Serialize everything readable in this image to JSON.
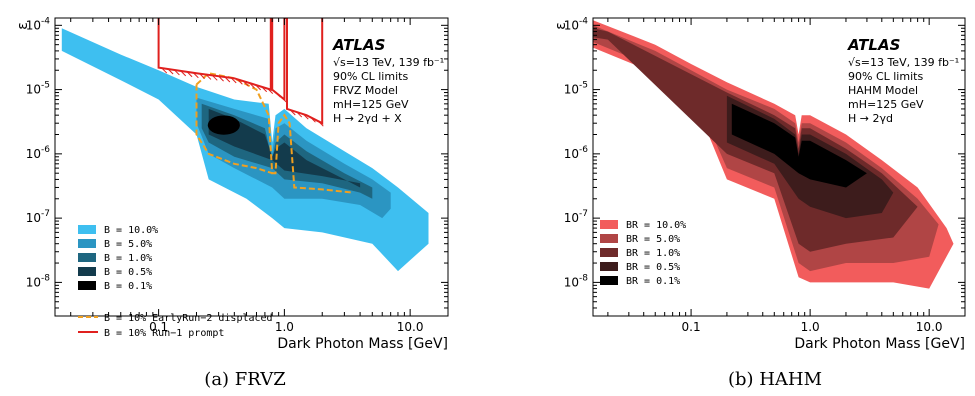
{
  "chart_data": [
    {
      "type": "area",
      "panel": "a",
      "caption": "(a) FRVZ",
      "xlabel": "Dark Photon Mass [GeV]",
      "ylabel": "ε",
      "xscale": "log",
      "yscale": "log",
      "xlim": [
        0.015,
        20
      ],
      "ylim": [
        3e-09,
        0.00013
      ],
      "xticks": [
        {
          "v": 0.1,
          "label": "0.1"
        },
        {
          "v": 1,
          "label": "1.0"
        },
        {
          "v": 10,
          "label": "10.0"
        }
      ],
      "yticks": [
        {
          "v": 0.0001,
          "exp": "-4"
        },
        {
          "v": 1e-05,
          "exp": "-5"
        },
        {
          "v": 1e-06,
          "exp": "-6"
        },
        {
          "v": 1e-07,
          "exp": "-7"
        },
        {
          "v": 1e-08,
          "exp": "-8"
        }
      ],
      "annotation": {
        "experiment": "ATLAS",
        "lines": [
          "√s=13 TeV, 139 fb⁻¹",
          "90% CL limits",
          "FRVZ Model",
          "mH=125 GeV",
          "H → 2γd + X"
        ]
      },
      "legend_position": "bottom-left",
      "series": [
        {
          "name": "B =  10.0%",
          "color": "#3ebff0",
          "kind": "band",
          "upper": [
            [
              0.017,
              9e-05
            ],
            [
              0.05,
              3.5e-05
            ],
            [
              0.1,
              2e-05
            ],
            [
              0.2,
              1.1e-05
            ],
            [
              0.4,
              7e-06
            ],
            [
              0.75,
              6e-06
            ],
            [
              0.8,
              1.5e-06
            ],
            [
              0.85,
              4e-06
            ],
            [
              1.0,
              5e-06
            ],
            [
              1.5,
              2.5e-06
            ],
            [
              3,
              1.1e-06
            ],
            [
              5,
              6e-07
            ],
            [
              8,
              3e-07
            ],
            [
              14,
              1.2e-07
            ]
          ],
          "lower": [
            [
              0.017,
              4e-05
            ],
            [
              0.05,
              1.4e-05
            ],
            [
              0.1,
              7e-06
            ],
            [
              0.2,
              2e-06
            ],
            [
              0.25,
              4e-07
            ],
            [
              0.5,
              2e-07
            ],
            [
              0.8,
              1e-07
            ],
            [
              1,
              7e-08
            ],
            [
              2,
              6e-08
            ],
            [
              5,
              4e-08
            ],
            [
              8,
              1.5e-08
            ],
            [
              14,
              4e-08
            ]
          ]
        },
        {
          "name": "B =   5.0%",
          "color": "#2b95c2",
          "kind": "band",
          "upper": [
            [
              0.2,
              7.5e-06
            ],
            [
              0.4,
              5e-06
            ],
            [
              0.75,
              3.5e-06
            ],
            [
              0.8,
              1e-06
            ],
            [
              0.85,
              2.5e-06
            ],
            [
              1.0,
              3e-06
            ],
            [
              1.5,
              1.6e-06
            ],
            [
              3,
              7e-07
            ],
            [
              5,
              4e-07
            ],
            [
              7,
              2.5e-07
            ]
          ],
          "lower": [
            [
              0.2,
              3e-06
            ],
            [
              0.25,
              1e-06
            ],
            [
              0.4,
              6e-07
            ],
            [
              0.8,
              3e-07
            ],
            [
              1,
              2e-07
            ],
            [
              2,
              2e-07
            ],
            [
              4,
              1.6e-07
            ],
            [
              6,
              1e-07
            ],
            [
              7,
              1.4e-07
            ]
          ]
        },
        {
          "name": "B =   1.0%",
          "color": "#1e6680",
          "kind": "band",
          "upper": [
            [
              0.22,
              6e-06
            ],
            [
              0.4,
              4e-06
            ],
            [
              0.7,
              2.5e-06
            ],
            [
              0.8,
              8e-07
            ],
            [
              0.85,
              1.5e-06
            ],
            [
              1.0,
              2e-06
            ],
            [
              1.5,
              1.1e-06
            ],
            [
              3,
              5e-07
            ],
            [
              5,
              3e-07
            ]
          ],
          "lower": [
            [
              0.22,
              2.5e-06
            ],
            [
              0.25,
              1.5e-06
            ],
            [
              0.4,
              9e-07
            ],
            [
              0.8,
              6e-07
            ],
            [
              1,
              4e-07
            ],
            [
              2,
              3.5e-07
            ],
            [
              4,
              2.5e-07
            ],
            [
              5,
              2e-07
            ]
          ]
        },
        {
          "name": "B =   0.5%",
          "color": "#133b4c",
          "kind": "band",
          "upper": [
            [
              0.25,
              5e-06
            ],
            [
              0.4,
              3.5e-06
            ],
            [
              0.7,
              2e-06
            ],
            [
              0.8,
              9e-07
            ],
            [
              0.85,
              1.2e-06
            ],
            [
              1.0,
              1.5e-06
            ],
            [
              1.5,
              8e-07
            ],
            [
              3,
              4e-07
            ],
            [
              4,
              3e-07
            ]
          ],
          "lower": [
            [
              0.25,
              2e-06
            ],
            [
              0.4,
              1.3e-06
            ],
            [
              0.8,
              8e-07
            ],
            [
              1,
              5.5e-07
            ],
            [
              2,
              4.5e-07
            ],
            [
              4,
              3.5e-07
            ]
          ]
        },
        {
          "name": "B =   0.1%",
          "color": "#000000",
          "kind": "ellipse",
          "center": [
            0.33,
            2.8e-06
          ],
          "x_range": [
            0.25,
            0.45
          ],
          "y_range": [
            2e-06,
            4e-06
          ]
        },
        {
          "name": "B = 10% EarlyRun−2 displaced",
          "color": "#f0a020",
          "kind": "dashed-line",
          "points": [
            [
              0.2,
              1.2e-05
            ],
            [
              0.25,
              1.8e-05
            ],
            [
              0.4,
              1.5e-05
            ],
            [
              0.6,
              1e-05
            ],
            [
              0.75,
              4e-06
            ],
            [
              0.8,
              5e-07
            ],
            [
              0.85,
              5e-07
            ],
            [
              0.9,
              3e-06
            ],
            [
              1.0,
              4e-06
            ],
            [
              1.1,
              3e-06
            ],
            [
              1.2,
              3e-07
            ],
            [
              2,
              2.8e-07
            ],
            [
              3.5,
              2.5e-07
            ]
          ],
          "closing": [
            [
              0.2,
              1.2e-05
            ],
            [
              0.2,
              2e-06
            ],
            [
              0.25,
              1e-06
            ],
            [
              0.4,
              7e-07
            ],
            [
              0.6,
              6e-07
            ],
            [
              0.8,
              5e-07
            ]
          ]
        },
        {
          "name": "B = 10% Run−1 prompt",
          "color": "#e0201e",
          "kind": "line",
          "points": [
            [
              0.1,
              0.00013
            ],
            [
              0.1,
              2.2e-05
            ],
            [
              0.2,
              1.8e-05
            ],
            [
              0.4,
              1.5e-05
            ],
            [
              0.78,
              1e-05
            ],
            [
              0.78,
              0.00013
            ],
            [
              0.8,
              0.00013
            ],
            [
              0.8,
              1e-05
            ],
            [
              1,
              7e-06
            ],
            [
              1,
              0.00013
            ],
            [
              1.05,
              0.00013
            ],
            [
              1.05,
              5e-06
            ],
            [
              1.5,
              4e-06
            ],
            [
              2,
              3e-06
            ],
            [
              2,
              0.00013
            ]
          ]
        }
      ]
    },
    {
      "type": "area",
      "panel": "b",
      "caption": "(b) HAHM",
      "xlabel": "Dark Photon Mass [GeV]",
      "ylabel": "ε",
      "xscale": "log",
      "yscale": "log",
      "xlim": [
        0.015,
        20
      ],
      "ylim": [
        3e-09,
        0.00013
      ],
      "xticks": [
        {
          "v": 0.1,
          "label": "0.1"
        },
        {
          "v": 1,
          "label": "1.0"
        },
        {
          "v": 10,
          "label": "10.0"
        }
      ],
      "yticks": [
        {
          "v": 0.0001,
          "exp": "-4"
        },
        {
          "v": 1e-05,
          "exp": "-5"
        },
        {
          "v": 1e-06,
          "exp": "-6"
        },
        {
          "v": 1e-07,
          "exp": "-7"
        },
        {
          "v": 1e-08,
          "exp": "-8"
        }
      ],
      "annotation": {
        "experiment": "ATLAS",
        "lines": [
          "√s=13 TeV, 139 fb⁻¹",
          "90% CL limits",
          "HAHM Model",
          "mH=125 GeV",
          "H → 2γd"
        ]
      },
      "legend_position": "bottom-left",
      "series": [
        {
          "name": "BR =  10.0%",
          "color": "#f25c5c",
          "kind": "band",
          "upper": [
            [
              0.015,
              0.00012
            ],
            [
              0.05,
              5e-05
            ],
            [
              0.1,
              2.5e-05
            ],
            [
              0.2,
              1.3e-05
            ],
            [
              0.5,
              6e-06
            ],
            [
              0.75,
              4e-06
            ],
            [
              0.8,
              2e-06
            ],
            [
              0.85,
              4e-06
            ],
            [
              1.0,
              4e-06
            ],
            [
              2,
              2e-06
            ],
            [
              4,
              8e-07
            ],
            [
              8,
              3e-07
            ],
            [
              14,
              7e-08
            ],
            [
              16,
              4e-08
            ]
          ],
          "lower": [
            [
              0.015,
              4.5e-05
            ],
            [
              0.05,
              1.8e-05
            ],
            [
              0.1,
              9e-06
            ],
            [
              0.2,
              4e-07
            ],
            [
              0.5,
              2e-07
            ],
            [
              0.8,
              1.2e-08
            ],
            [
              1,
              1e-08
            ],
            [
              2,
              1e-08
            ],
            [
              5,
              1e-08
            ],
            [
              10,
              8e-09
            ],
            [
              16,
              4e-08
            ]
          ]
        },
        {
          "name": "BR =   5.0%",
          "color": "#b04545",
          "kind": "band",
          "upper": [
            [
              0.015,
              0.0001
            ],
            [
              0.05,
              4e-05
            ],
            [
              0.1,
              2e-05
            ],
            [
              0.2,
              1e-05
            ],
            [
              0.5,
              5e-06
            ],
            [
              0.75,
              3e-06
            ],
            [
              0.8,
              1.5e-06
            ],
            [
              0.85,
              3e-06
            ],
            [
              1.0,
              3e-06
            ],
            [
              2,
              1.5e-06
            ],
            [
              4,
              6e-07
            ],
            [
              8,
              2e-07
            ],
            [
              12,
              8e-08
            ]
          ],
          "lower": [
            [
              0.015,
              5.5e-05
            ],
            [
              0.05,
              2.2e-05
            ],
            [
              0.1,
              1.1e-05
            ],
            [
              0.2,
              6e-07
            ],
            [
              0.5,
              3e-07
            ],
            [
              0.8,
              2e-08
            ],
            [
              1,
              1.5e-08
            ],
            [
              2,
              2e-08
            ],
            [
              5,
              2e-08
            ],
            [
              10,
              2.5e-08
            ],
            [
              12,
              8e-08
            ]
          ]
        },
        {
          "name": "BR =   1.0%",
          "color": "#6e2a2a",
          "kind": "band",
          "upper": [
            [
              0.015,
              9e-05
            ],
            [
              0.02,
              8e-05
            ],
            [
              0.2,
              9e-06
            ],
            [
              0.5,
              4e-06
            ],
            [
              0.75,
              2.5e-06
            ],
            [
              0.8,
              1.2e-06
            ],
            [
              0.85,
              2.5e-06
            ],
            [
              1.0,
              2.5e-06
            ],
            [
              2,
              1.2e-06
            ],
            [
              4,
              5e-07
            ],
            [
              8,
              1.5e-07
            ]
          ],
          "lower": [
            [
              0.015,
              6.5e-05
            ],
            [
              0.02,
              6e-05
            ],
            [
              0.2,
              1e-06
            ],
            [
              0.5,
              5e-07
            ],
            [
              0.8,
              4e-08
            ],
            [
              1,
              3e-08
            ],
            [
              2,
              4e-08
            ],
            [
              5,
              5e-08
            ],
            [
              8,
              1.5e-07
            ]
          ]
        },
        {
          "name": "BR =   0.5%",
          "color": "#3d1c1c",
          "kind": "band",
          "upper": [
            [
              0.2,
              8e-06
            ],
            [
              0.5,
              3.5e-06
            ],
            [
              0.75,
              2e-06
            ],
            [
              0.8,
              1e-06
            ],
            [
              0.85,
              2e-06
            ],
            [
              1.0,
              2e-06
            ],
            [
              2,
              1e-06
            ],
            [
              4,
              4e-07
            ],
            [
              5,
              2.5e-07
            ]
          ],
          "lower": [
            [
              0.2,
              1.5e-06
            ],
            [
              0.5,
              7e-07
            ],
            [
              0.8,
              2e-07
            ],
            [
              1,
              1.5e-07
            ],
            [
              2,
              1e-07
            ],
            [
              4,
              1.2e-07
            ],
            [
              5,
              2.5e-07
            ]
          ]
        },
        {
          "name": "BR =   0.1%",
          "color": "#000000",
          "kind": "band",
          "upper": [
            [
              0.22,
              6e-06
            ],
            [
              0.5,
              3e-06
            ],
            [
              0.75,
              1.8e-06
            ],
            [
              0.8,
              9e-07
            ],
            [
              0.85,
              1.6e-06
            ],
            [
              1.0,
              1.6e-06
            ],
            [
              2,
              8e-07
            ],
            [
              3,
              5e-07
            ]
          ],
          "lower": [
            [
              0.22,
              2e-06
            ],
            [
              0.5,
              1e-06
            ],
            [
              0.8,
              5e-07
            ],
            [
              1,
              4e-07
            ],
            [
              2,
              3e-07
            ],
            [
              3,
              5e-07
            ]
          ]
        }
      ]
    }
  ]
}
